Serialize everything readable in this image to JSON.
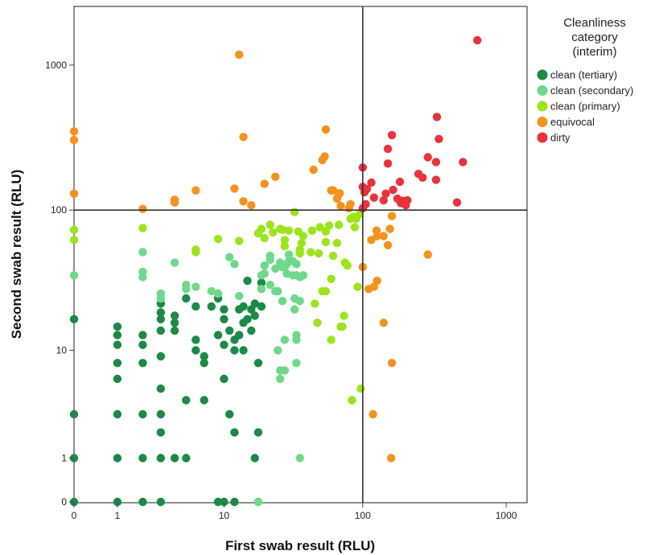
{
  "chart_data": {
    "type": "scatter",
    "title": "",
    "xlabel": "First swab result (RLU)",
    "ylabel": "Second swab result (RLU)",
    "x_scale": "log (shifted, 0 shown)",
    "y_scale": "log (shifted, 0 shown)",
    "x_ticks": [
      "0",
      "1",
      "10",
      "100",
      "1000"
    ],
    "y_ticks": [
      "0",
      "1",
      "10",
      "100",
      "1000"
    ],
    "reference_lines": {
      "x": 100,
      "y": 100
    },
    "grid": false,
    "legend_title_lines": [
      "Cleanliness",
      "category",
      "(interim)"
    ],
    "legend_position": "right",
    "series": [
      {
        "name": "clean (tertiary)",
        "color": "#1a8a45",
        "points": [
          [
            0,
            0
          ],
          [
            0,
            1
          ],
          [
            0,
            3
          ],
          [
            0,
            17
          ],
          [
            1,
            0
          ],
          [
            1,
            1
          ],
          [
            1,
            3
          ],
          [
            1,
            6
          ],
          [
            1,
            8
          ],
          [
            1,
            11
          ],
          [
            1,
            13
          ],
          [
            1,
            15
          ],
          [
            2,
            0
          ],
          [
            2,
            1
          ],
          [
            2,
            3
          ],
          [
            2,
            8
          ],
          [
            2,
            11
          ],
          [
            2,
            13
          ],
          [
            3,
            0
          ],
          [
            3,
            1
          ],
          [
            3,
            2
          ],
          [
            3,
            3
          ],
          [
            3,
            5
          ],
          [
            3,
            9
          ],
          [
            3,
            14
          ],
          [
            3,
            17
          ],
          [
            3,
            19
          ],
          [
            3,
            22
          ],
          [
            4,
            1
          ],
          [
            4,
            14
          ],
          [
            4,
            16
          ],
          [
            4,
            18
          ],
          [
            5,
            1
          ],
          [
            5,
            4
          ],
          [
            5,
            24
          ],
          [
            6,
            10
          ],
          [
            6,
            12
          ],
          [
            6,
            21
          ],
          [
            7,
            4
          ],
          [
            7,
            8
          ],
          [
            7,
            9
          ],
          [
            8,
            21
          ],
          [
            9,
            0
          ],
          [
            9,
            13
          ],
          [
            9,
            24
          ],
          [
            10,
            0
          ],
          [
            10,
            6
          ],
          [
            10,
            11
          ],
          [
            10,
            17
          ],
          [
            10,
            20
          ],
          [
            11,
            14
          ],
          [
            11,
            3
          ],
          [
            12,
            10
          ],
          [
            12,
            12
          ],
          [
            12,
            2
          ],
          [
            12,
            0
          ],
          [
            13,
            13
          ],
          [
            13,
            20
          ],
          [
            14,
            10
          ],
          [
            14,
            16
          ],
          [
            14,
            21
          ],
          [
            15,
            17
          ],
          [
            15,
            32
          ],
          [
            16,
            20
          ],
          [
            16,
            14
          ],
          [
            17,
            1
          ],
          [
            17,
            18
          ],
          [
            17,
            22
          ],
          [
            18,
            8
          ],
          [
            18,
            0
          ],
          [
            18,
            2
          ],
          [
            19,
            21
          ],
          [
            19,
            31
          ]
        ]
      },
      {
        "name": "clean  (secondary)",
        "color": "#6ed98a",
        "points": [
          [
            0,
            35
          ],
          [
            2,
            34
          ],
          [
            2,
            37
          ],
          [
            2,
            51
          ],
          [
            3,
            24
          ],
          [
            3,
            26
          ],
          [
            4,
            43
          ],
          [
            5,
            28
          ],
          [
            5,
            30
          ],
          [
            6,
            29
          ],
          [
            8,
            27
          ],
          [
            9,
            26
          ],
          [
            11,
            47
          ],
          [
            12,
            42
          ],
          [
            13,
            25
          ],
          [
            19,
            28
          ],
          [
            19,
            35
          ],
          [
            20,
            36
          ],
          [
            20,
            41
          ],
          [
            22,
            30
          ],
          [
            22,
            45
          ],
          [
            22,
            48
          ],
          [
            24,
            27
          ],
          [
            24,
            39
          ],
          [
            25,
            10
          ],
          [
            25,
            27
          ],
          [
            26,
            6
          ],
          [
            26,
            7
          ],
          [
            26,
            43
          ],
          [
            27,
            23
          ],
          [
            27,
            40
          ],
          [
            27,
            41
          ],
          [
            28,
            12
          ],
          [
            28,
            7
          ],
          [
            28,
            40
          ],
          [
            29,
            36
          ],
          [
            29,
            42
          ],
          [
            30,
            44
          ],
          [
            30,
            49
          ],
          [
            32,
            35
          ],
          [
            32,
            44
          ],
          [
            33,
            20
          ],
          [
            33,
            24
          ],
          [
            34,
            13
          ],
          [
            34,
            8
          ],
          [
            34,
            12
          ],
          [
            34,
            35
          ],
          [
            34,
            42
          ],
          [
            36,
            1
          ],
          [
            36,
            23
          ],
          [
            36,
            34
          ],
          [
            38,
            35
          ],
          [
            18,
            0
          ]
        ]
      },
      {
        "name": "clean (primary)",
        "color": "#9be51c",
        "points": [
          [
            0,
            62
          ],
          [
            0,
            73
          ],
          [
            2,
            75
          ],
          [
            6,
            51
          ],
          [
            6,
            53
          ],
          [
            9,
            63
          ],
          [
            13,
            61
          ],
          [
            18,
            69
          ],
          [
            19,
            74
          ],
          [
            20,
            64
          ],
          [
            22,
            79
          ],
          [
            23,
            70
          ],
          [
            26,
            74
          ],
          [
            27,
            73
          ],
          [
            28,
            62
          ],
          [
            28,
            56
          ],
          [
            30,
            72
          ],
          [
            33,
            97
          ],
          [
            35,
            71
          ],
          [
            36,
            50
          ],
          [
            36,
            53
          ],
          [
            37,
            59
          ],
          [
            38,
            66
          ],
          [
            43,
            51
          ],
          [
            44,
            72
          ],
          [
            46,
            22
          ],
          [
            48,
            16
          ],
          [
            49,
            50
          ],
          [
            50,
            76
          ],
          [
            52,
            27
          ],
          [
            55,
            27
          ],
          [
            55,
            71
          ],
          [
            55,
            60
          ],
          [
            58,
            78
          ],
          [
            60,
            33
          ],
          [
            60,
            12
          ],
          [
            62,
            48
          ],
          [
            66,
            59
          ],
          [
            68,
            79
          ],
          [
            70,
            15
          ],
          [
            72,
            15
          ],
          [
            74,
            18
          ],
          [
            75,
            43
          ],
          [
            78,
            41
          ],
          [
            82,
            87
          ],
          [
            84,
            4
          ],
          [
            86,
            90
          ],
          [
            88,
            76
          ],
          [
            90,
            87
          ],
          [
            92,
            29
          ],
          [
            95,
            94
          ],
          [
            97,
            5
          ]
        ]
      },
      {
        "name": "equivocal",
        "color": "#f3931e",
        "points": [
          [
            0,
            130
          ],
          [
            0,
            305
          ],
          [
            0,
            350
          ],
          [
            2,
            102
          ],
          [
            4,
            113
          ],
          [
            4,
            118
          ],
          [
            6,
            137
          ],
          [
            12,
            141
          ],
          [
            13,
            1180
          ],
          [
            14,
            320
          ],
          [
            14,
            115
          ],
          [
            16,
            108
          ],
          [
            20,
            152
          ],
          [
            24,
            170
          ],
          [
            45,
            190
          ],
          [
            52,
            222
          ],
          [
            54,
            235
          ],
          [
            55,
            360
          ],
          [
            60,
            137
          ],
          [
            62,
            137
          ],
          [
            66,
            120
          ],
          [
            68,
            129
          ],
          [
            69,
            131
          ],
          [
            70,
            107
          ],
          [
            80,
            103
          ],
          [
            82,
            110
          ],
          [
            100,
            40
          ],
          [
            110,
            28
          ],
          [
            115,
            62
          ],
          [
            118,
            3
          ],
          [
            120,
            29
          ],
          [
            125,
            72
          ],
          [
            126,
            32
          ],
          [
            126,
            66
          ],
          [
            140,
            16
          ],
          [
            140,
            66
          ],
          [
            150,
            57
          ],
          [
            155,
            74
          ],
          [
            158,
            1
          ],
          [
            160,
            8
          ],
          [
            160,
            91
          ],
          [
            285,
            49
          ]
        ]
      },
      {
        "name": "dirty",
        "color": "#e8333b",
        "points": [
          [
            100,
            103
          ],
          [
            100,
            145
          ],
          [
            100,
            197
          ],
          [
            103,
            133
          ],
          [
            105,
            110
          ],
          [
            107,
            140
          ],
          [
            115,
            155
          ],
          [
            120,
            122
          ],
          [
            140,
            117
          ],
          [
            145,
            130
          ],
          [
            150,
            210
          ],
          [
            150,
            265
          ],
          [
            160,
            330
          ],
          [
            163,
            138
          ],
          [
            175,
            120
          ],
          [
            182,
            157
          ],
          [
            185,
            112
          ],
          [
            190,
            116
          ],
          [
            200,
            108
          ],
          [
            205,
            117
          ],
          [
            245,
            178
          ],
          [
            262,
            168
          ],
          [
            285,
            232
          ],
          [
            325,
            215
          ],
          [
            325,
            162
          ],
          [
            330,
            440
          ],
          [
            340,
            310
          ],
          [
            455,
            113
          ],
          [
            500,
            215
          ],
          [
            630,
            1480
          ]
        ]
      }
    ]
  }
}
